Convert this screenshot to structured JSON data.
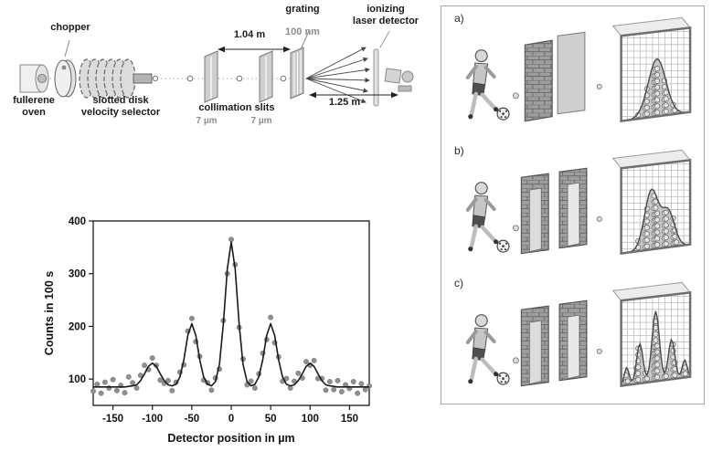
{
  "apparatus": {
    "chopper_label": "chopper",
    "oven_label": "fullerene\noven",
    "selector_label": "slotted disk\nvelocity selector",
    "collimation_label": "collimation slits",
    "slit1_width": "7 µm",
    "slit2_width": "7 µm",
    "distance1": "1.04 m",
    "grating_label": "grating",
    "grating_period": "100 nm",
    "detector_label": "ionizing\nlaser detector",
    "distance2": "1.25 m"
  },
  "chart_data": {
    "type": "scatter",
    "title": "",
    "xlabel": "Detector position in µm",
    "ylabel": "Counts in 100 s",
    "xlim": [
      -175,
      175
    ],
    "ylim": [
      50,
      400
    ],
    "xticks": [
      -150,
      -100,
      -50,
      0,
      50,
      100,
      150
    ],
    "yticks": [
      100,
      200,
      300,
      400
    ],
    "grid": false,
    "legend": "none",
    "series": [
      {
        "name": "measured counts",
        "type": "scatter",
        "x": [
          -175,
          -170,
          -165,
          -160,
          -155,
          -150,
          -145,
          -140,
          -135,
          -130,
          -125,
          -120,
          -115,
          -110,
          -105,
          -100,
          -95,
          -90,
          -85,
          -80,
          -75,
          -70,
          -65,
          -60,
          -55,
          -50,
          -45,
          -40,
          -35,
          -30,
          -25,
          -20,
          -15,
          -10,
          -5,
          0,
          5,
          10,
          15,
          20,
          25,
          30,
          35,
          40,
          45,
          50,
          55,
          60,
          65,
          70,
          75,
          80,
          85,
          90,
          95,
          100,
          105,
          110,
          115,
          120,
          125,
          130,
          135,
          140,
          145,
          150,
          155,
          160,
          165,
          170,
          175
        ],
        "y": [
          77,
          90,
          73,
          94,
          83,
          99,
          78,
          88,
          74,
          104,
          93,
          83,
          107,
          126,
          118,
          140,
          126,
          98,
          92,
          97,
          78,
          94,
          113,
          127,
          191,
          215,
          171,
          143,
          98,
          93,
          79,
          102,
          119,
          211,
          300,
          365,
          317,
          198,
          138,
          89,
          96,
          83,
          110,
          149,
          175,
          217,
          169,
          142,
          96,
          101,
          83,
          96,
          111,
          102,
          133,
          126,
          135,
          101,
          101,
          79,
          95,
          80,
          97,
          76,
          89,
          82,
          95,
          73,
          91,
          80,
          87
        ]
      },
      {
        "name": "diffraction fit",
        "type": "line",
        "x": [
          -175,
          -170,
          -165,
          -160,
          -155,
          -150,
          -145,
          -140,
          -135,
          -130,
          -125,
          -120,
          -115,
          -110,
          -105,
          -100,
          -95,
          -90,
          -85,
          -80,
          -75,
          -70,
          -65,
          -60,
          -55,
          -50,
          -45,
          -40,
          -35,
          -30,
          -25,
          -20,
          -15,
          -10,
          -5,
          0,
          5,
          10,
          15,
          20,
          25,
          30,
          35,
          40,
          45,
          50,
          55,
          60,
          65,
          70,
          75,
          80,
          85,
          90,
          95,
          100,
          105,
          110,
          115,
          120,
          125,
          130,
          135,
          140,
          145,
          150,
          155,
          160,
          165,
          170,
          175
        ],
        "y": [
          85,
          85,
          85,
          85,
          85,
          85,
          85,
          85,
          85,
          86,
          87,
          89,
          97,
          110,
          124,
          130,
          124,
          110,
          97,
          89,
          87,
          90,
          104,
          137,
          183,
          205,
          183,
          137,
          104,
          90,
          87,
          95,
          128,
          205,
          309,
          360,
          309,
          205,
          128,
          95,
          87,
          90,
          104,
          137,
          183,
          205,
          183,
          137,
          104,
          90,
          87,
          89,
          97,
          110,
          124,
          130,
          124,
          110,
          97,
          89,
          87,
          86,
          85,
          85,
          85,
          85,
          85,
          85,
          85,
          85,
          85
        ]
      }
    ]
  },
  "panels": {
    "items": [
      {
        "label": "a)",
        "slits": 1,
        "humps": [
          {
            "c": 0.52,
            "h": 0.72,
            "w": 0.18
          }
        ]
      },
      {
        "label": "b)",
        "slits": 2,
        "humps": [
          {
            "c": 0.44,
            "h": 0.74,
            "w": 0.14
          },
          {
            "c": 0.68,
            "h": 0.45,
            "w": 0.13
          }
        ]
      },
      {
        "label": "c)",
        "slits": 2,
        "humps": [
          {
            "c": 0.5,
            "h": 0.88,
            "w": 0.075
          },
          {
            "c": 0.27,
            "h": 0.5,
            "w": 0.065
          },
          {
            "c": 0.73,
            "h": 0.5,
            "w": 0.065
          },
          {
            "c": 0.08,
            "h": 0.22,
            "w": 0.05
          },
          {
            "c": 0.92,
            "h": 0.22,
            "w": 0.05
          }
        ]
      }
    ]
  }
}
